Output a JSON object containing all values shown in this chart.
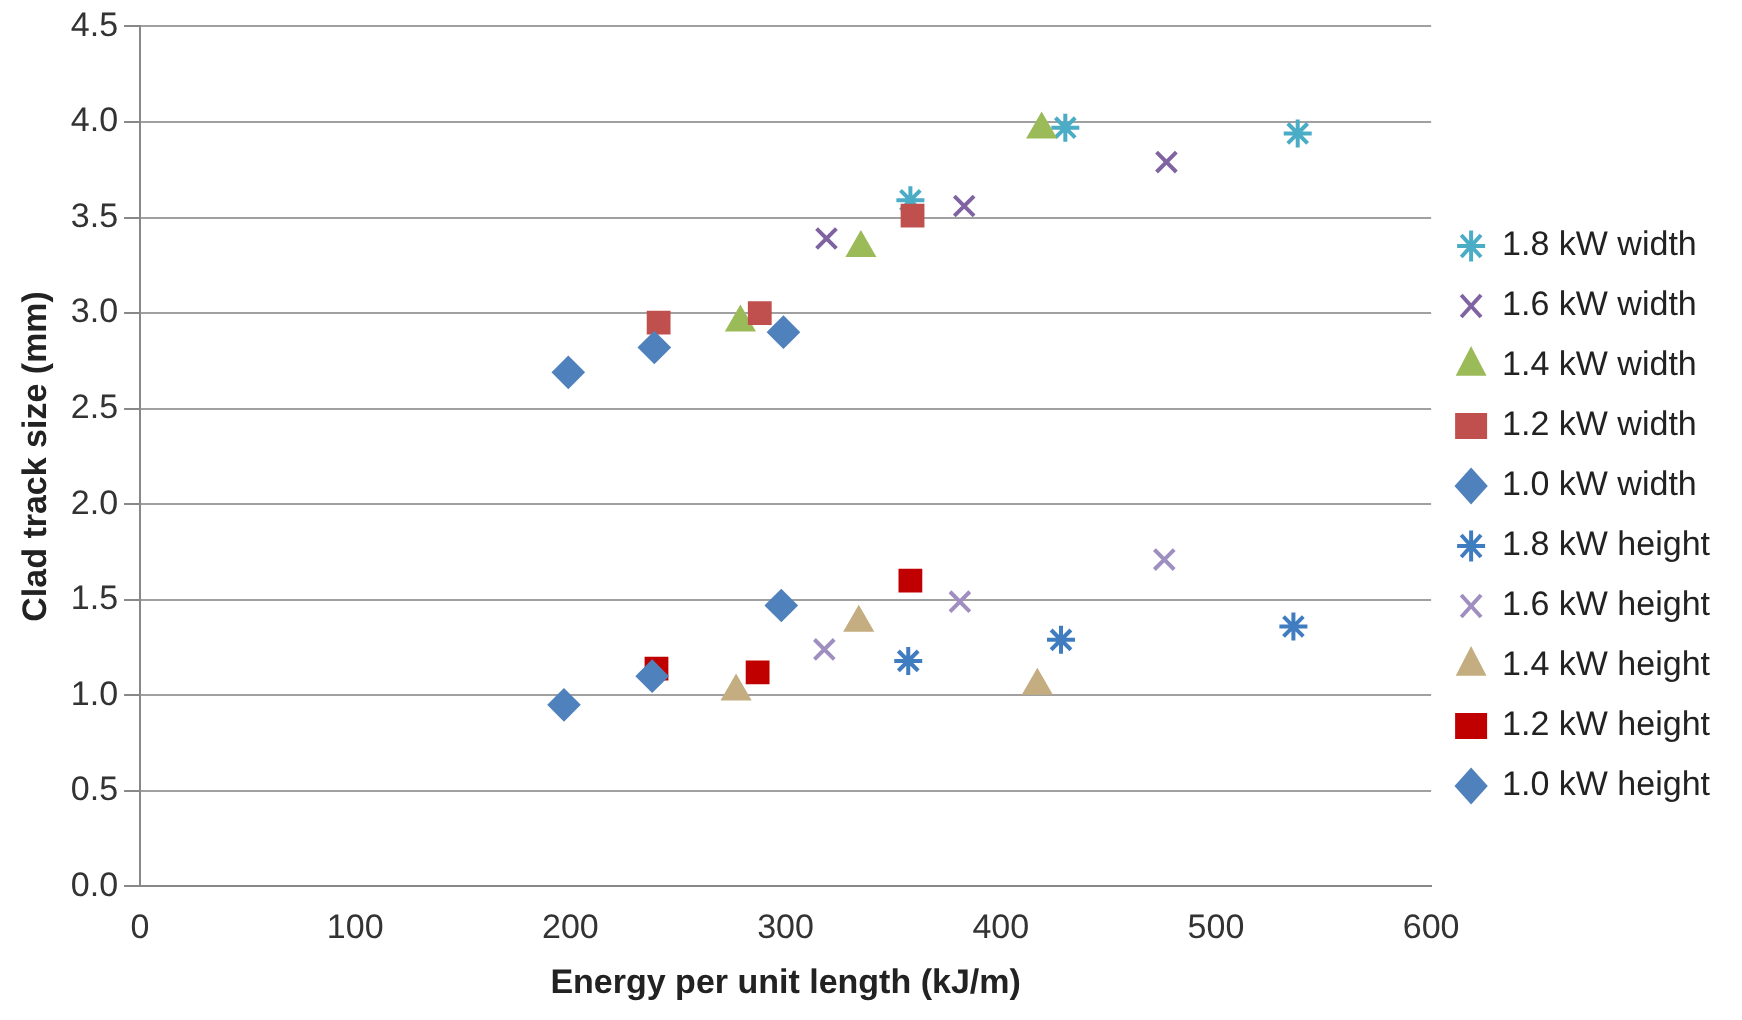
{
  "chart_data": {
    "type": "scatter",
    "xlabel": "Energy per unit length (kJ/m)",
    "ylabel": "Clad track size (mm)",
    "xlim": [
      0,
      600
    ],
    "xticks": [
      0,
      100,
      200,
      300,
      400,
      500,
      600
    ],
    "ylim": [
      0,
      4.5
    ],
    "yticks": [
      {
        "value": 0,
        "label": "0.0"
      },
      {
        "value": 0.5,
        "label": "0.5"
      },
      {
        "value": 1,
        "label": "1.0"
      },
      {
        "value": 1.5,
        "label": "1.5"
      },
      {
        "value": 2,
        "label": "2.0"
      },
      {
        "value": 2.5,
        "label": "2.5"
      },
      {
        "value": 3,
        "label": "3.0"
      },
      {
        "value": 3.5,
        "label": "3.5"
      },
      {
        "value": 4,
        "label": "4.0"
      },
      {
        "value": 4.5,
        "label": "4.5"
      }
    ],
    "grid": "y",
    "legend": "right",
    "series": [
      {
        "name": "1.8 kW width",
        "color": "#4bacc6",
        "x": [
          358,
          430,
          538
        ],
        "values": [
          3.59,
          3.97,
          3.94
        ]
      },
      {
        "name": "1.6 kW width",
        "color": "#8064a2",
        "marker": "cross",
        "x": [
          319,
          383,
          477
        ],
        "values": [
          3.39,
          3.56,
          3.79
        ]
      },
      {
        "name": "1.4 kW width",
        "color": "#9bbb59",
        "marker": "triangle",
        "x": [
          279,
          335,
          419
        ],
        "values": [
          2.95,
          3.34,
          3.96
        ]
      },
      {
        "name": "1.2 kW width",
        "color": "#c0504d",
        "marker": "square",
        "x": [
          241,
          288,
          359
        ],
        "values": [
          2.95,
          3.0,
          3.51
        ]
      },
      {
        "name": "1.0 kW width",
        "color": "#4f81bd",
        "marker": "diamond",
        "x": [
          199,
          239,
          299
        ],
        "values": [
          2.69,
          2.82,
          2.9
        ]
      },
      {
        "name": "1.8 kW height",
        "color": "#3f7cc0",
        "x": [
          357,
          428,
          536
        ],
        "values": [
          1.18,
          1.29,
          1.36
        ]
      },
      {
        "name": "1.6 kW height",
        "color": "#9f8fc0",
        "marker": "cross",
        "x": [
          318,
          381,
          476
        ],
        "values": [
          1.24,
          1.49,
          1.71
        ]
      },
      {
        "name": "1.4 kW height",
        "color": "#c4ad80",
        "marker": "triangle",
        "x": [
          277,
          334,
          417
        ],
        "values": [
          1.02,
          1.38,
          1.05
        ]
      },
      {
        "name": "1.2 kW height",
        "color": "#c00000",
        "marker": "square",
        "x": [
          240,
          287,
          358
        ],
        "values": [
          1.14,
          1.12,
          1.6
        ]
      },
      {
        "name": "1.0 kW height",
        "color": "#4f81bd",
        "marker": "diamond",
        "x": [
          197,
          238,
          298
        ],
        "values": [
          0.95,
          1.1,
          1.47
        ]
      }
    ]
  }
}
